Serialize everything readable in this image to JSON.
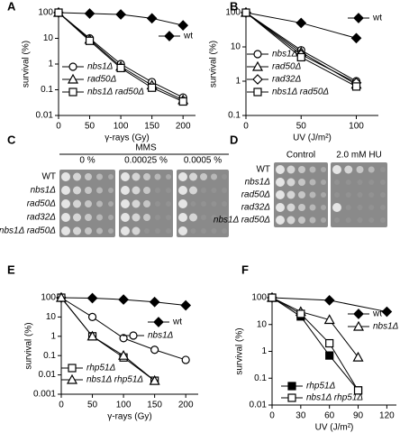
{
  "chart_data": [
    {
      "label": "A",
      "type": "line",
      "yscale": "log",
      "xlabel": "γ-rays (Gy)",
      "ylabel": "survival (%)",
      "x": [
        0,
        50,
        100,
        150,
        200
      ],
      "xlim": [
        0,
        220
      ],
      "xticks": [
        0,
        50,
        100,
        150,
        200
      ],
      "ylim": [
        0.01,
        100
      ],
      "yticks": [
        0.01,
        0.1,
        1,
        10,
        100
      ],
      "series": [
        {
          "name": "wt",
          "marker": "diamond",
          "filled": true,
          "color": "#000000",
          "values": [
            100,
            92,
            85,
            60,
            32
          ]
        },
        {
          "name": "nbs1Δ",
          "marker": "circle",
          "filled": false,
          "color": "#000000",
          "values": [
            100,
            10,
            1,
            0.2,
            0.05
          ]
        },
        {
          "name": "rad50Δ",
          "marker": "triangle",
          "filled": false,
          "color": "#000000",
          "values": [
            100,
            9,
            0.8,
            0.15,
            0.04
          ]
        },
        {
          "name": "nbs1Δ rad50Δ",
          "marker": "square",
          "filled": false,
          "color": "#000000",
          "values": [
            100,
            8,
            0.7,
            0.12,
            0.035
          ]
        }
      ]
    },
    {
      "label": "B",
      "type": "line",
      "yscale": "log",
      "xlabel": "UV (J/m²)",
      "ylabel": "survival (%)",
      "x": [
        0,
        50,
        100
      ],
      "xlim": [
        0,
        120
      ],
      "xticks": [
        0,
        50,
        100
      ],
      "ylim": [
        0.1,
        100
      ],
      "yticks": [
        0.1,
        1,
        10,
        100
      ],
      "series": [
        {
          "name": "wt",
          "marker": "diamond",
          "filled": true,
          "color": "#000000",
          "values": [
            100,
            50,
            18
          ]
        },
        {
          "name": "nbs1Δ",
          "marker": "circle",
          "filled": false,
          "color": "#000000",
          "values": [
            100,
            8,
            1
          ]
        },
        {
          "name": "rad50Δ",
          "marker": "triangle",
          "filled": false,
          "color": "#000000",
          "values": [
            100,
            7,
            0.8
          ]
        },
        {
          "name": "rad32Δ",
          "marker": "diamond",
          "filled": false,
          "color": "#000000",
          "values": [
            100,
            6,
            0.9
          ]
        },
        {
          "name": "nbs1Δ rad50Δ",
          "marker": "square",
          "filled": false,
          "color": "#000000",
          "values": [
            100,
            5,
            0.7
          ]
        }
      ]
    },
    {
      "label": "E",
      "type": "line",
      "yscale": "log",
      "xlabel": "γ-rays (Gy)",
      "ylabel": "survival (%)",
      "x": [
        0,
        50,
        100,
        150,
        200
      ],
      "xlim": [
        0,
        220
      ],
      "xticks": [
        0,
        50,
        100,
        150,
        200
      ],
      "ylim": [
        0.001,
        100
      ],
      "yticks": [
        0.001,
        0.01,
        0.1,
        1,
        10,
        100
      ],
      "series": [
        {
          "name": "wt",
          "marker": "diamond",
          "filled": true,
          "color": "#000000",
          "values": [
            100,
            95,
            80,
            60,
            40
          ]
        },
        {
          "name": "nbs1Δ",
          "marker": "circle",
          "filled": false,
          "color": "#000000",
          "values": [
            100,
            10,
            0.8,
            0.2,
            0.06
          ]
        },
        {
          "name": "rhp51Δ",
          "marker": "square",
          "filled": false,
          "color": "#000000",
          "values": [
            100,
            1,
            0.08,
            0.005,
            null
          ]
        },
        {
          "name": "nbs1Δ rhp51Δ",
          "marker": "triangle",
          "filled": false,
          "color": "#000000",
          "values": [
            100,
            1,
            0.1,
            0.005,
            null
          ]
        }
      ]
    },
    {
      "label": "F",
      "type": "line",
      "yscale": "log",
      "xlabel": "UV (J/m²)",
      "ylabel": "survival (%)",
      "xlim": [
        0,
        130
      ],
      "xticks": [
        0,
        30,
        60,
        90,
        120
      ],
      "ylim": [
        0.01,
        100
      ],
      "yticks": [
        0.01,
        0.1,
        1,
        10,
        100
      ],
      "series": [
        {
          "name": "wt",
          "marker": "diamond",
          "filled": true,
          "color": "#000000",
          "x": [
            0,
            60,
            120
          ],
          "values": [
            100,
            80,
            30
          ]
        },
        {
          "name": "nbs1Δ",
          "marker": "triangle",
          "filled": false,
          "color": "#000000",
          "x": [
            0,
            30,
            60,
            90
          ],
          "values": [
            100,
            30,
            15,
            0.6
          ]
        },
        {
          "name": "rhp51Δ",
          "marker": "square",
          "filled": true,
          "color": "#000000",
          "x": [
            0,
            30,
            60,
            90
          ],
          "values": [
            100,
            20,
            0.7,
            0.035
          ]
        },
        {
          "name": "nbs1Δ rhp51Δ",
          "marker": "square",
          "filled": false,
          "color": "#000000",
          "x": [
            0,
            30,
            60,
            90
          ],
          "values": [
            100,
            25,
            2,
            0.035
          ]
        }
      ]
    }
  ],
  "spot_assays": [
    {
      "label": "C",
      "title": "MMS",
      "columns": [
        "0 %",
        "0.00025 %",
        "0.0005 %"
      ],
      "rows": [
        "WT",
        "nbs1Δ",
        "rad50Δ",
        "rad32Δ",
        "nbs1Δ rad50Δ"
      ]
    },
    {
      "label": "D",
      "columns": [
        "Control",
        "2.0 mM HU"
      ],
      "rows": [
        "WT",
        "nbs1Δ",
        "rad50Δ",
        "rad32Δ",
        "nbs1Δ rad50Δ"
      ]
    }
  ]
}
